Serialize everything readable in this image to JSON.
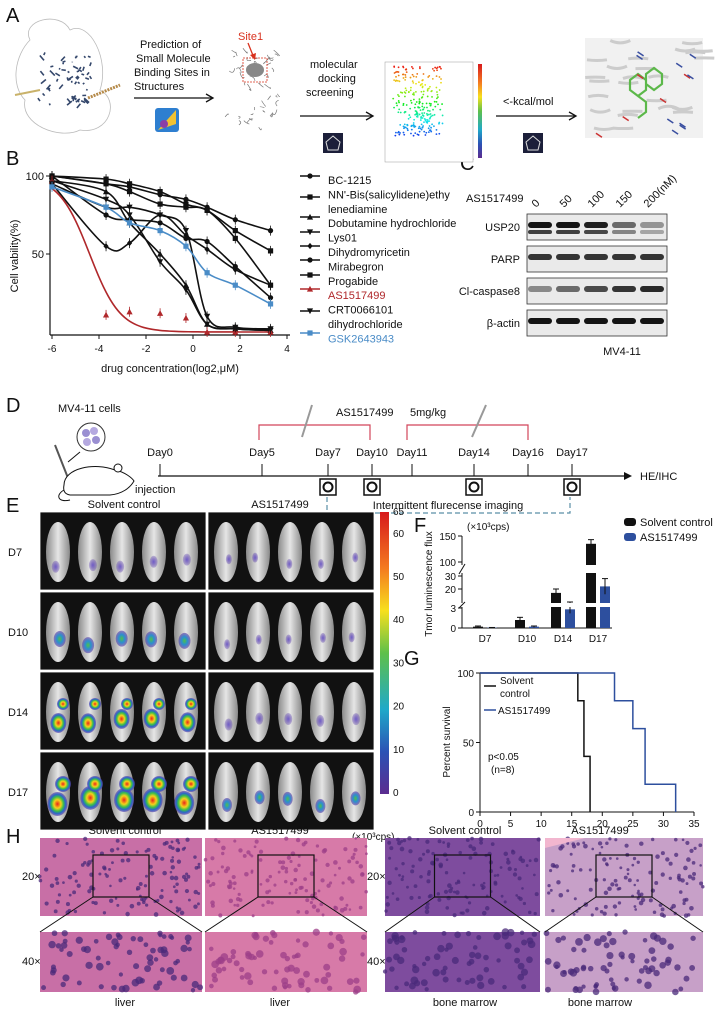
{
  "panel_labels": [
    "A",
    "B",
    "C",
    "D",
    "E",
    "F",
    "G",
    "H"
  ],
  "panelA": {
    "step1": [
      "Prediction of",
      "Small Molecule",
      "Binding Sites in",
      "Structures"
    ],
    "site_label": "Site1",
    "step2": [
      "molecular",
      "docking",
      "screening"
    ],
    "step3": "<-kcal/mol",
    "colors": {
      "site": "#d9321f",
      "protein": "#34476b"
    }
  },
  "chart_data": [
    {
      "id": "B",
      "type": "line",
      "xlabel": "drug concentration(log2,μM)",
      "ylabel": "Cell vability(%)",
      "xlim": [
        -6,
        4
      ],
      "ylim": [
        0,
        100
      ],
      "xticks": [
        -6,
        -4,
        -2,
        0,
        2,
        4
      ],
      "yticks": [
        50,
        100
      ],
      "legend": "right",
      "x": [
        -6,
        -3.7,
        -2.7,
        -1.4,
        -0.3,
        0.6,
        1.8,
        3.3
      ],
      "series": [
        {
          "name": "BC-1215",
          "label_lines": [
            "BC-1215"
          ],
          "marker": "circle",
          "color": "#111111",
          "values": [
            100,
            95,
            93,
            88,
            85,
            80,
            72,
            65
          ]
        },
        {
          "name": "NN'-Bis(salicylidene)ethylenediamine",
          "label_lines": [
            "NN'-Bis(salicylidene)ethy",
            "lenediamine"
          ],
          "marker": "square",
          "color": "#111111",
          "values": [
            100,
            98,
            95,
            90,
            82,
            78,
            65,
            52
          ]
        },
        {
          "name": "Dobutamine hydrochloride",
          "label_lines": [
            "Dobutamine hydrochloride"
          ],
          "marker": "triangle",
          "color": "#111111",
          "values": [
            97,
            90,
            70,
            50,
            30,
            5,
            2,
            1
          ]
        },
        {
          "name": "Lys01",
          "label_lines": [
            "Lys01"
          ],
          "marker": "triangle-down",
          "color": "#111111",
          "values": [
            97,
            85,
            75,
            45,
            27,
            5,
            2,
            1
          ]
        },
        {
          "name": "Dihydromyricetin",
          "label_lines": [
            "Dihydromyricetin"
          ],
          "marker": "diamond",
          "color": "#111111",
          "values": [
            95,
            55,
            57,
            75,
            62,
            53,
            40,
            30
          ]
        },
        {
          "name": "Mirabegron",
          "label_lines": [
            "Mirabegron"
          ],
          "marker": "circle",
          "color": "#111111",
          "values": [
            100,
            75,
            72,
            70,
            60,
            58,
            42,
            22
          ]
        },
        {
          "name": "Progabide",
          "label_lines": [
            "Progabide"
          ],
          "marker": "square",
          "color": "#111111",
          "values": [
            100,
            95,
            90,
            82,
            80,
            78,
            60,
            30
          ]
        },
        {
          "name": "AS1517499",
          "label_lines": [
            "AS1517499"
          ],
          "marker": "triangle",
          "color": "#b0282b",
          "values": [
            97,
            11,
            13,
            12,
            9,
            0,
            0,
            0
          ]
        },
        {
          "name": "CRT0066101 dihydrochloride",
          "label_lines": [
            "CRT0066101",
            "dihydrochloride"
          ],
          "marker": "triangle-down",
          "color": "#111111",
          "values": [
            95,
            80,
            80,
            75,
            65,
            10,
            3,
            2
          ]
        },
        {
          "name": "GSK2643943",
          "label_lines": [
            "GSK2643943"
          ],
          "marker": "square",
          "color": "#4a8cc7",
          "values": [
            93,
            80,
            70,
            65,
            55,
            38,
            30,
            18
          ]
        }
      ]
    },
    {
      "id": "F",
      "type": "bar",
      "ylabel": "Tmor luminescence flux",
      "unit": "(×10³cps)",
      "categories": [
        "D7",
        "D10",
        "D14",
        "D17"
      ],
      "yticks": [
        "0",
        "3",
        "20",
        "30",
        "100",
        "150"
      ],
      "axis_breaks": [
        [
          3,
          10
        ],
        [
          30,
          100
        ]
      ],
      "legend": "top-right",
      "series": [
        {
          "name": "Solvent control",
          "color": "#111111",
          "values": [
            0.2,
            1.2,
            17,
            135
          ],
          "errors": [
            0.1,
            0.4,
            3,
            8
          ]
        },
        {
          "name": "AS1517499",
          "color": "#2d4f9e",
          "values": [
            0.05,
            0.2,
            2.8,
            22
          ],
          "errors": [
            0.03,
            0.1,
            0.6,
            6
          ]
        }
      ]
    },
    {
      "id": "G",
      "type": "line",
      "step": true,
      "ylabel": "Percent survival",
      "xlim": [
        0,
        35
      ],
      "ylim": [
        0,
        100
      ],
      "xticks": [
        0,
        5,
        10,
        15,
        20,
        25,
        30,
        35
      ],
      "yticks": [
        0,
        50,
        100
      ],
      "legend": "top-left",
      "annotation": [
        "p<0.05",
        "(n=8)"
      ],
      "series": [
        {
          "name": "Solvent control",
          "label_lines": [
            "Solvent",
            "control"
          ],
          "color": "#111111",
          "x": [
            0,
            16,
            16,
            17,
            17,
            18,
            18
          ],
          "y": [
            100,
            100,
            80,
            80,
            40,
            40,
            0
          ]
        },
        {
          "name": "AS1517499",
          "label_lines": [
            "AS1517499"
          ],
          "color": "#2d4f9e",
          "x": [
            0,
            22,
            22,
            25,
            25,
            27,
            27,
            32,
            32
          ],
          "y": [
            100,
            100,
            80,
            80,
            60,
            60,
            20,
            20,
            0
          ]
        }
      ]
    }
  ],
  "panelC": {
    "treatment": "AS1517499",
    "doses": [
      "0",
      "50",
      "100",
      "150",
      "200(nM)"
    ],
    "proteins": [
      "USP20",
      "PARP",
      "Cl-caspase8",
      "β-actin"
    ],
    "cell_line": "MV4-11"
  },
  "panelD": {
    "cells": "MV4-11 cells",
    "injection": "injection",
    "drug": "AS1517499",
    "dose": "5mg/kg",
    "days": [
      "Day0",
      "Day5",
      "Day7",
      "Day10",
      "Day11",
      "Day14",
      "Day16",
      "Day17"
    ],
    "endpoint": "HE/IHC",
    "imaging": "Intermittent flurecense imaging",
    "colors": {
      "bracket": "#d2455a",
      "dashed": "#5b8fa6"
    }
  },
  "panelE": {
    "groups": [
      "Solvent control",
      "AS1517499"
    ],
    "days": [
      "D7",
      "D10",
      "D14",
      "D17"
    ],
    "colorbar_ticks": [
      "65",
      "60",
      "50",
      "40",
      "30",
      "20",
      "10",
      "0"
    ],
    "colorbar_unit": "(×10³cps)"
  },
  "panelH": {
    "groups": [
      "Solvent control",
      "AS1517499",
      "Solvent control",
      "AS1517499"
    ],
    "magnifications": [
      "20×",
      "40×"
    ],
    "tissues": [
      "liver",
      "liver",
      "bone marrow",
      "bone marrow"
    ]
  }
}
